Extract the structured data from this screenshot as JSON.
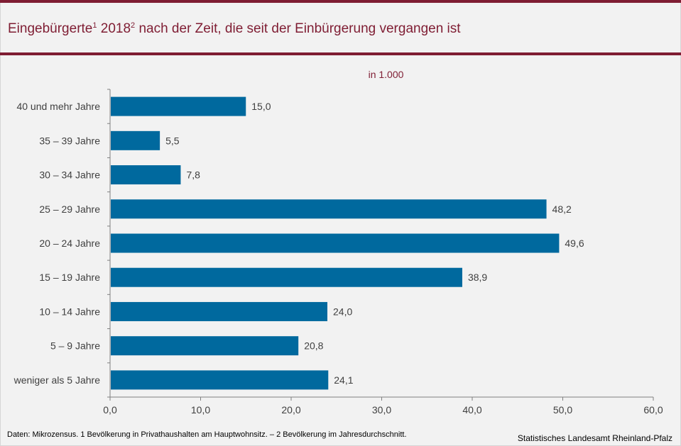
{
  "header": {
    "title_part1": "Eingebürgerte",
    "title_sup1": "1",
    "title_part2": " 2018",
    "title_sup2": "2",
    "title_part3": " nach der Zeit, die seit der Einbürgerung vergangen ist"
  },
  "footer": {
    "source": "Daten: Mikrozensus. 1 Bevölkerung in Privathaushalten am Hauptwohnsitz. – 2 Bevölkerung im Jahresdurchschnitt.",
    "publisher": "Statistisches Landesamt  Rheinland-Pfalz"
  },
  "colors": {
    "accent": "#7f1d33",
    "bar": "#00699e",
    "background": "#f2f2f2"
  },
  "chart_data": {
    "type": "bar",
    "orientation": "horizontal",
    "unit_label": "in 1.000",
    "categories": [
      "40 und mehr Jahre",
      "35 – 39 Jahre",
      "30 – 34 Jahre",
      "25 – 29 Jahre",
      "20 – 24 Jahre",
      "15 – 19 Jahre",
      "10 – 14 Jahre",
      "5 – 9 Jahre",
      "weniger als 5 Jahre"
    ],
    "values": [
      15.0,
      5.5,
      7.8,
      48.2,
      49.6,
      38.9,
      24.0,
      20.8,
      24.1
    ],
    "value_labels": [
      "15,0",
      "5,5",
      "7,8",
      "48,2",
      "49,6",
      "38,9",
      "24,0",
      "20,8",
      "24,1"
    ],
    "xlim": [
      0,
      60
    ],
    "xticks": [
      0,
      10,
      20,
      30,
      40,
      50,
      60
    ],
    "xtick_labels": [
      "0,0",
      "10,0",
      "20,0",
      "30,0",
      "40,0",
      "50,0",
      "60,0"
    ],
    "grid": false,
    "legend": "none"
  }
}
